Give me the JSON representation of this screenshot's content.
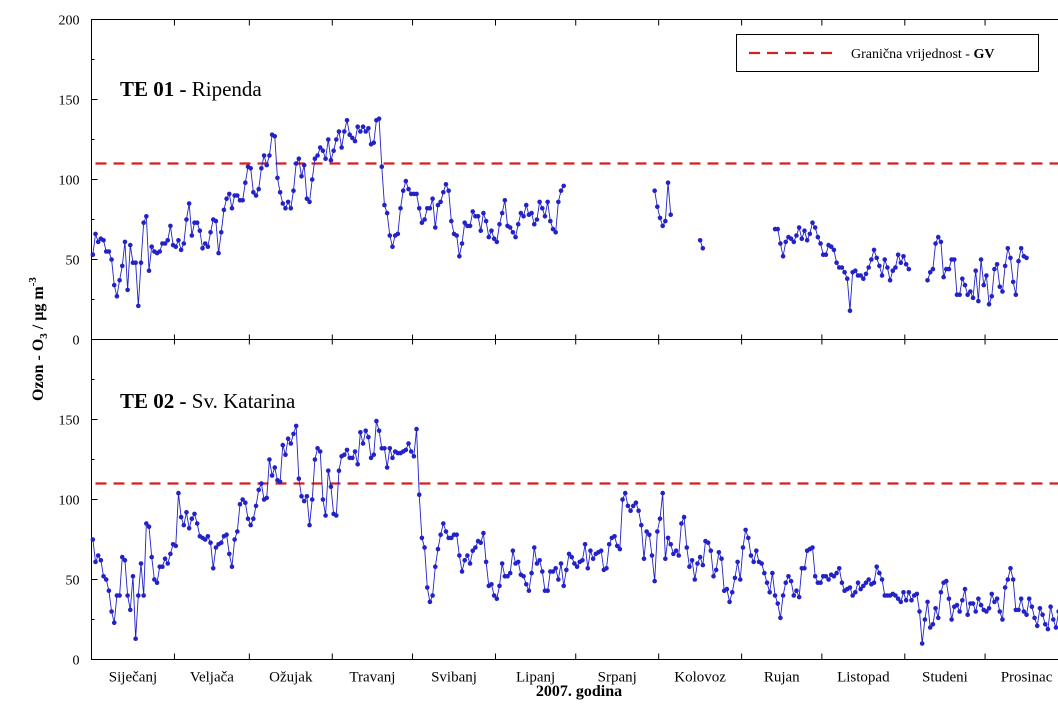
{
  "chart_data": {
    "type": "line",
    "xlabel": "2007. godina",
    "ylabel": "Ozon - O",
    "ylabel_sub": "3",
    "ylabel_unit": " / µg m",
    "ylabel_sup": "-3",
    "months": [
      "Siječanj",
      "Veljača",
      "Ožujak",
      "Travanj",
      "Svibanj",
      "Lipanj",
      "Srpanj",
      "Kolovoz",
      "Rujan",
      "Listopad",
      "Studeni",
      "Prosinac"
    ],
    "month_days": [
      31,
      28,
      31,
      30,
      31,
      30,
      31,
      31,
      30,
      31,
      30,
      31
    ],
    "ylim": [
      0,
      200
    ],
    "yticks": [
      "0",
      "50",
      "100",
      "150",
      "200"
    ],
    "limit_value": 110,
    "legend": {
      "label": "Granična vrijednost - ",
      "label_bold": "GV",
      "placement": "top-right"
    },
    "colors": {
      "series": "#2222c8",
      "limit": "#d42020"
    },
    "panels": [
      {
        "id": "te01",
        "title_bold": "TE 01 - ",
        "title": "Ripenda",
        "y": [
          53,
          66,
          61,
          63,
          62,
          55,
          55,
          50,
          34,
          27,
          37,
          46,
          61,
          31,
          59,
          48,
          48,
          21,
          48,
          73,
          77,
          43,
          58,
          55,
          54,
          55,
          60,
          60,
          62,
          71,
          59,
          58,
          62,
          56,
          60,
          75,
          85,
          65,
          73,
          73,
          68,
          57,
          60,
          58,
          67,
          75,
          74,
          54,
          67,
          81,
          88,
          91,
          82,
          90,
          90,
          87,
          87,
          98,
          108,
          107,
          92,
          90,
          94,
          107,
          115,
          109,
          115,
          128,
          127,
          101,
          92,
          85,
          82,
          86,
          82,
          93,
          110,
          113,
          102,
          109,
          88,
          86,
          100,
          113,
          115,
          120,
          118,
          113,
          125,
          112,
          118,
          125,
          130,
          120,
          130,
          137,
          128,
          126,
          124,
          133,
          130,
          133,
          130,
          132,
          122,
          123,
          137,
          138,
          108,
          84,
          79,
          65,
          58,
          65,
          66,
          82,
          93,
          99,
          94,
          91,
          91,
          91,
          82,
          73,
          75,
          82,
          82,
          88,
          70,
          84,
          86,
          92,
          97,
          93,
          74,
          66,
          65,
          52,
          60,
          73,
          71,
          71,
          80,
          77,
          77,
          68,
          79,
          74,
          64,
          68,
          63,
          61,
          72,
          79,
          87,
          71,
          70,
          67,
          64,
          72,
          79,
          77,
          84,
          78,
          79,
          72,
          75,
          86,
          82,
          77,
          86,
          74,
          69,
          67,
          86,
          93,
          96,
          null,
          null,
          null,
          null,
          null,
          null,
          null,
          null,
          null,
          null,
          null,
          null,
          null,
          null,
          null,
          null,
          null,
          null,
          null,
          null,
          null,
          null,
          null,
          null,
          null,
          null,
          null,
          null,
          null,
          null,
          null,
          null,
          null,
          93,
          83,
          76,
          71,
          74,
          98,
          78,
          null,
          null,
          null,
          null,
          null,
          null,
          null,
          null,
          null,
          null,
          62,
          57,
          null,
          null,
          null,
          null,
          null,
          null,
          null,
          null,
          null,
          null,
          null,
          null,
          null,
          null,
          null,
          null,
          null,
          null,
          null,
          null,
          null,
          null,
          null,
          null,
          null,
          null,
          69,
          69,
          60,
          52,
          61,
          64,
          63,
          61,
          65,
          70,
          63,
          68,
          62,
          66,
          73,
          70,
          64,
          60,
          53,
          53,
          59,
          58,
          56,
          48,
          45,
          45,
          42,
          38,
          18,
          42,
          43,
          40,
          40,
          38,
          41,
          45,
          50,
          56,
          51,
          46,
          40,
          50,
          45,
          37,
          43,
          45,
          53,
          48,
          52,
          47,
          44,
          null,
          null,
          null,
          null,
          null,
          null,
          37,
          42,
          44,
          60,
          64,
          61,
          39,
          44,
          44,
          50,
          50,
          28,
          28,
          38,
          34,
          28,
          30,
          26,
          43,
          24,
          50,
          34,
          40,
          22,
          27,
          44,
          47,
          33,
          30,
          46,
          57,
          51,
          36,
          28,
          49,
          57,
          52,
          51
        ]
      },
      {
        "id": "te02",
        "title_bold": "TE 02 - ",
        "title": "Sv. Katarina",
        "y": [
          75,
          61,
          65,
          62,
          52,
          50,
          43,
          30,
          23,
          40,
          40,
          64,
          62,
          40,
          31,
          52,
          13,
          40,
          60,
          40,
          85,
          83,
          64,
          50,
          48,
          58,
          58,
          63,
          60,
          66,
          72,
          71,
          104,
          89,
          84,
          92,
          82,
          88,
          91,
          85,
          77,
          76,
          75,
          77,
          73,
          57,
          70,
          72,
          73,
          77,
          78,
          66,
          58,
          75,
          80,
          97,
          100,
          98,
          88,
          84,
          88,
          96,
          106,
          110,
          100,
          101,
          125,
          115,
          120,
          112,
          111,
          134,
          128,
          138,
          135,
          141,
          146,
          113,
          102,
          99,
          102,
          84,
          100,
          125,
          132,
          130,
          100,
          90,
          118,
          108,
          91,
          90,
          118,
          127,
          128,
          131,
          126,
          126,
          130,
          122,
          142,
          135,
          143,
          139,
          126,
          128,
          149,
          143,
          132,
          132,
          120,
          132,
          126,
          130,
          129,
          129,
          130,
          131,
          135,
          130,
          127,
          144,
          103,
          76,
          70,
          45,
          36,
          40,
          58,
          69,
          78,
          85,
          80,
          76,
          76,
          78,
          78,
          65,
          55,
          62,
          65,
          60,
          68,
          70,
          74,
          73,
          79,
          61,
          46,
          47,
          40,
          38,
          46,
          60,
          52,
          52,
          54,
          68,
          60,
          61,
          53,
          52,
          47,
          43,
          54,
          70,
          60,
          62,
          55,
          43,
          43,
          55,
          55,
          57,
          50,
          60,
          46,
          56,
          66,
          64,
          60,
          58,
          61,
          62,
          72,
          57,
          68,
          63,
          66,
          67,
          68,
          56,
          57,
          72,
          76,
          77,
          71,
          69,
          100,
          104,
          96,
          93,
          96,
          98,
          93,
          84,
          63,
          80,
          78,
          65,
          49,
          80,
          88,
          104,
          63,
          76,
          72,
          66,
          68,
          65,
          85,
          89,
          70,
          58,
          62,
          50,
          60,
          64,
          59,
          74,
          73,
          68,
          52,
          56,
          67,
          63,
          43,
          44,
          36,
          42,
          51,
          61,
          50,
          70,
          81,
          76,
          65,
          61,
          68,
          61,
          60,
          54,
          48,
          42,
          54,
          40,
          35,
          26,
          40,
          48,
          52,
          49,
          40,
          43,
          39,
          57,
          57,
          68,
          69,
          70,
          52,
          48,
          48,
          52,
          52,
          50,
          53,
          52,
          54,
          57,
          48,
          43,
          44,
          45,
          40,
          42,
          48,
          44,
          46,
          48,
          50,
          47,
          48,
          58,
          54,
          50,
          40,
          40,
          40,
          41,
          40,
          38,
          36,
          42,
          37,
          42,
          37,
          40,
          41,
          30,
          10,
          25,
          36,
          20,
          22,
          32,
          26,
          42,
          48,
          49,
          38,
          25,
          33,
          34,
          30,
          37,
          44,
          28,
          35,
          35,
          30,
          38,
          34,
          31,
          30,
          32,
          41,
          36,
          38,
          30,
          25,
          45,
          50,
          57,
          50,
          31,
          31,
          38,
          30,
          28,
          38,
          33,
          26,
          21,
          32,
          28,
          22,
          19,
          33,
          25,
          20,
          30,
          38,
          28,
          34,
          26,
          21,
          38,
          32,
          44,
          50,
          42,
          25,
          30,
          20,
          41,
          46,
          17,
          25,
          16,
          38,
          42,
          48
        ]
      }
    ]
  }
}
